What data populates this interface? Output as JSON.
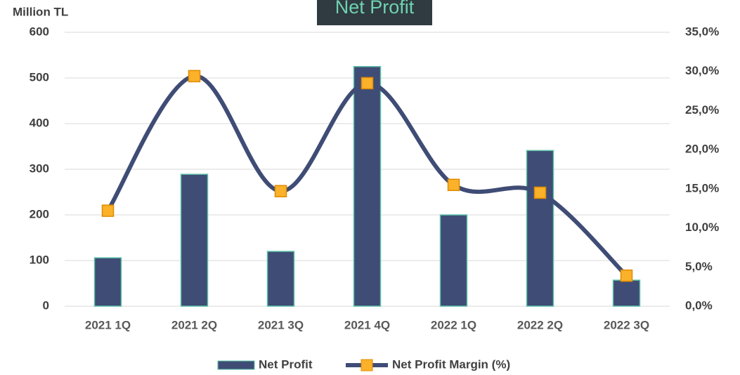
{
  "chart_data": {
    "type": "bar_line",
    "title": "Net Profit",
    "y_axis_label": "Million TL",
    "categories": [
      "2021 1Q",
      "2021 2Q",
      "2021 3Q",
      "2021 4Q",
      "2022 1Q",
      "2022 2Q",
      "2022 3Q"
    ],
    "series": [
      {
        "name": "Net Profit",
        "type": "bar",
        "color": "#3f4c75",
        "values": [
          106,
          289,
          120,
          525,
          200,
          341,
          57
        ]
      },
      {
        "name": "Net Profit Margin (%)",
        "type": "line",
        "axis": "y2",
        "color": "#3f4c75",
        "marker_color": "#fbb12a",
        "values": [
          12.2,
          29.4,
          14.7,
          28.5,
          15.5,
          14.5,
          3.9
        ]
      }
    ],
    "ylim": [
      0,
      600
    ],
    "yticks": [
      0,
      100,
      200,
      300,
      400,
      500,
      600
    ],
    "y2lim": [
      0,
      35
    ],
    "y2ticks": [
      {
        "value": 0,
        "label": "0,0%"
      },
      {
        "value": 5,
        "label": "5,0%"
      },
      {
        "value": 10,
        "label": "10,0%"
      },
      {
        "value": 15,
        "label": "15,0%"
      },
      {
        "value": 20,
        "label": "20,0%"
      },
      {
        "value": 25,
        "label": "25,0%"
      },
      {
        "value": 30,
        "label": "30,0%"
      },
      {
        "value": 35,
        "label": "35,0%"
      }
    ],
    "grid": true,
    "legend": "bottom"
  }
}
